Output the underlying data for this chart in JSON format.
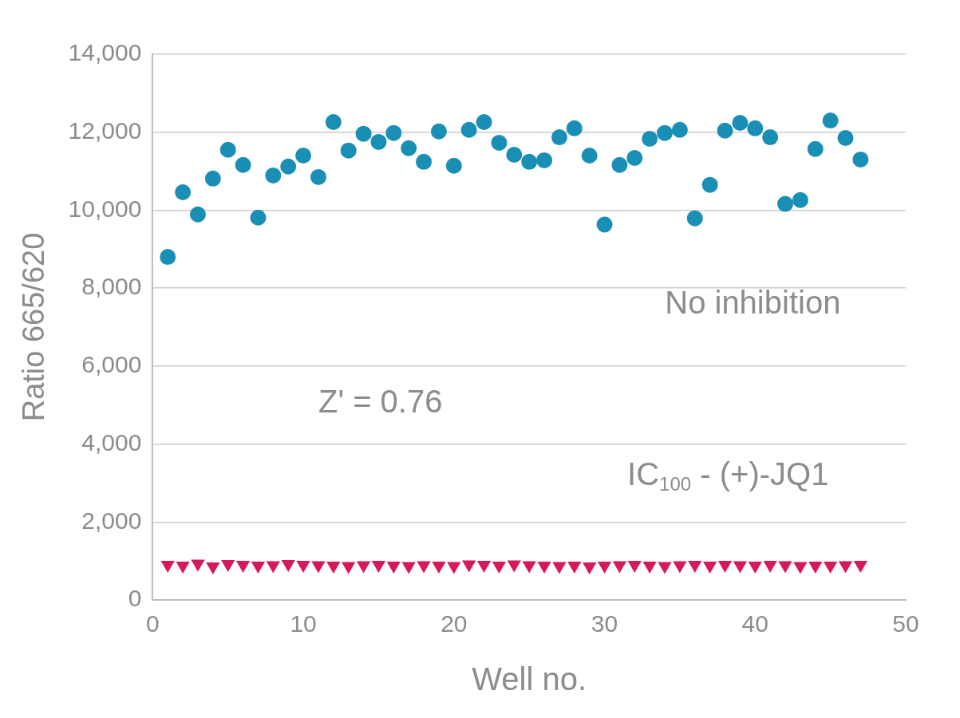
{
  "chart_data": {
    "type": "scatter",
    "xlabel": "Well no.",
    "ylabel": "Ratio 665/620",
    "xlim": [
      0,
      50
    ],
    "xticks": [
      0,
      10,
      20,
      30,
      40,
      50
    ],
    "ylim": [
      0,
      14000
    ],
    "yticks": [
      {
        "value": 0,
        "label": "0"
      },
      {
        "value": 2000,
        "label": "2,000"
      },
      {
        "value": 4000,
        "label": "4,000"
      },
      {
        "value": 6000,
        "label": "6,000"
      },
      {
        "value": 8000,
        "label": "8,000"
      },
      {
        "value": 10000,
        "label": "10,000"
      },
      {
        "value": 12000,
        "label": "12,000"
      },
      {
        "value": 14000,
        "label": "14,000"
      }
    ],
    "grid": "y",
    "legend": false,
    "annotations": [
      "Z' = 0.76"
    ],
    "x": [
      1,
      2,
      3,
      4,
      5,
      6,
      7,
      8,
      9,
      10,
      11,
      12,
      13,
      14,
      15,
      16,
      17,
      18,
      19,
      20,
      21,
      22,
      23,
      24,
      25,
      26,
      27,
      28,
      29,
      30,
      31,
      32,
      33,
      34,
      35,
      36,
      37,
      38,
      39,
      40,
      41,
      42,
      43,
      44,
      45,
      46,
      47
    ],
    "series": [
      {
        "name": "No inhibition",
        "color": "#1a8fb5",
        "marker": "circle",
        "values": [
          8800,
          10460,
          9890,
          10810,
          11550,
          11160,
          9810,
          10890,
          11120,
          11400,
          10850,
          12260,
          11530,
          11960,
          11750,
          11980,
          11590,
          11240,
          12020,
          11140,
          12060,
          12260,
          11730,
          11420,
          11240,
          11280,
          11870,
          12100,
          11400,
          9630,
          11160,
          11340,
          11830,
          11980,
          12060,
          9790,
          10650,
          12040,
          12240,
          12100,
          11870,
          10160,
          10260,
          11570,
          12300,
          11850,
          11300
        ]
      },
      {
        "name": "IC$_{100}$ - (+)-JQ1",
        "color": "#d6185c",
        "marker": "triangle",
        "values": [
          900,
          880,
          930,
          860,
          920,
          900,
          880,
          890,
          920,
          900,
          890,
          880,
          870,
          890,
          900,
          880,
          870,
          890,
          880,
          870,
          910,
          900,
          880,
          910,
          890,
          880,
          870,
          880,
          860,
          880,
          890,
          900,
          880,
          870,
          890,
          900,
          880,
          900,
          890,
          880,
          900,
          890,
          870,
          880,
          880,
          890,
          900
        ]
      }
    ]
  }
}
